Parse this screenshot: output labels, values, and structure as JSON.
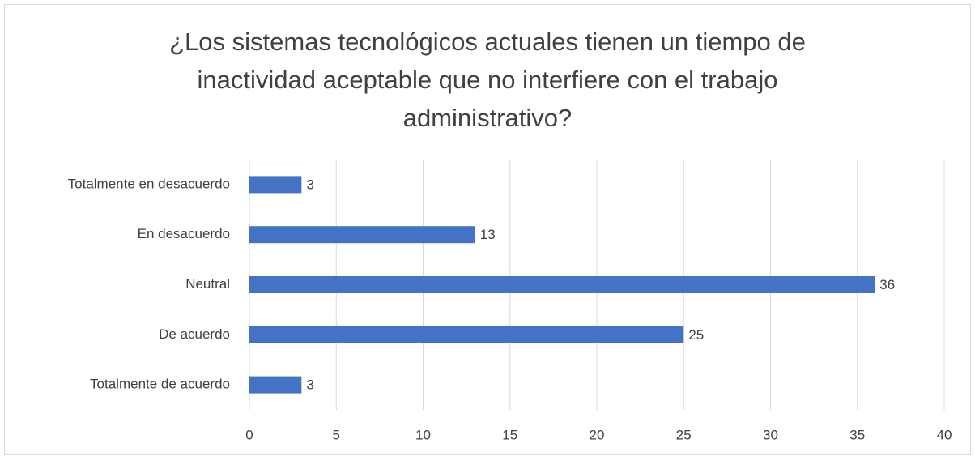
{
  "chart_data": {
    "type": "bar",
    "orientation": "horizontal",
    "title": "¿Los sistemas tecnológicos actuales tienen un tiempo de inactividad aceptable que no interfiere con el trabajo administrativo?",
    "categories": [
      "Totalmente en desacuerdo",
      "En desacuerdo",
      "Neutral",
      "De acuerdo",
      "Totalmente de acuerdo"
    ],
    "values": [
      3,
      13,
      36,
      25,
      3
    ],
    "color": "#4472c4",
    "xlim": [
      0,
      40
    ],
    "xticks": [
      0,
      5,
      10,
      15,
      20,
      25,
      30,
      35,
      40
    ],
    "grid": true
  }
}
